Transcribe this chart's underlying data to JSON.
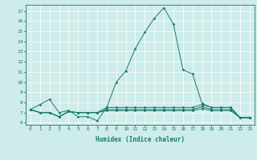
{
  "xlabel": "Humidex (Indice chaleur)",
  "bg_color": "#ceecea",
  "line_color": "#1a7a6e",
  "xlim": [
    -0.5,
    23.5
  ],
  "ylim": [
    5.8,
    17.6
  ],
  "xticks": [
    0,
    1,
    2,
    3,
    4,
    5,
    6,
    7,
    8,
    9,
    10,
    11,
    12,
    13,
    14,
    15,
    16,
    17,
    18,
    19,
    20,
    21,
    22,
    23
  ],
  "yticks": [
    6,
    7,
    8,
    9,
    10,
    11,
    12,
    13,
    14,
    15,
    16,
    17
  ],
  "series": [
    {
      "x": [
        0,
        1,
        2,
        3,
        4,
        5,
        6,
        7,
        8,
        9,
        10,
        11,
        12,
        13,
        14,
        15,
        16,
        17,
        18,
        19,
        20,
        21,
        22,
        23
      ],
      "y": [
        7.3,
        7.8,
        8.3,
        7.0,
        7.2,
        6.6,
        6.6,
        6.2,
        7.5,
        10.0,
        11.1,
        13.3,
        14.9,
        16.3,
        17.3,
        15.7,
        11.2,
        10.8,
        7.9,
        7.5,
        7.5,
        7.5,
        6.5,
        6.5
      ]
    },
    {
      "x": [
        0,
        1,
        2,
        3,
        4,
        5,
        6,
        7,
        8,
        9,
        10,
        11,
        12,
        13,
        14,
        15,
        16,
        17,
        18,
        19,
        20,
        21,
        22,
        23
      ],
      "y": [
        7.3,
        7.0,
        7.0,
        6.6,
        7.1,
        7.0,
        7.0,
        7.0,
        7.5,
        7.5,
        7.5,
        7.5,
        7.5,
        7.5,
        7.5,
        7.5,
        7.5,
        7.5,
        7.8,
        7.5,
        7.5,
        7.5,
        6.5,
        6.5
      ]
    },
    {
      "x": [
        0,
        1,
        2,
        3,
        4,
        5,
        6,
        7,
        8,
        9,
        10,
        11,
        12,
        13,
        14,
        15,
        16,
        17,
        18,
        19,
        20,
        21,
        22,
        23
      ],
      "y": [
        7.3,
        7.0,
        7.0,
        6.6,
        7.1,
        7.0,
        7.0,
        7.0,
        7.3,
        7.3,
        7.3,
        7.3,
        7.3,
        7.3,
        7.3,
        7.3,
        7.3,
        7.3,
        7.6,
        7.3,
        7.3,
        7.3,
        6.5,
        6.5
      ]
    },
    {
      "x": [
        0,
        1,
        2,
        3,
        4,
        5,
        6,
        7,
        8,
        9,
        10,
        11,
        12,
        13,
        14,
        15,
        16,
        17,
        18,
        19,
        20,
        21,
        22,
        23
      ],
      "y": [
        7.3,
        7.0,
        7.0,
        6.6,
        7.1,
        7.0,
        7.0,
        7.0,
        7.2,
        7.2,
        7.2,
        7.2,
        7.2,
        7.2,
        7.2,
        7.2,
        7.2,
        7.2,
        7.4,
        7.2,
        7.2,
        7.2,
        6.5,
        6.5
      ]
    }
  ]
}
